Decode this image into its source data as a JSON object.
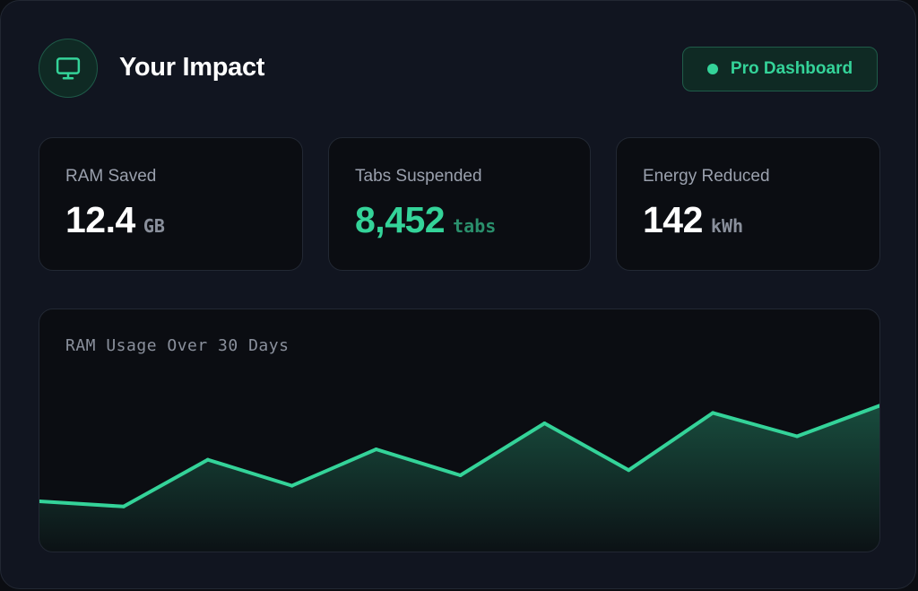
{
  "header": {
    "title": "Your Impact",
    "logo_icon": "monitor-icon",
    "badge_label": "Pro Dashboard"
  },
  "stats": [
    {
      "label": "RAM Saved",
      "value": "12.4",
      "unit": "GB"
    },
    {
      "label": "Tabs Suspended",
      "value": "8,452",
      "unit": "tabs"
    },
    {
      "label": "Energy Reduced",
      "value": "142",
      "unit": "kWh"
    }
  ],
  "colors": {
    "accent": "#34d399",
    "background": "#111520",
    "panel": "#0b0d12"
  },
  "chart_data": {
    "type": "area",
    "title": "RAM Usage Over 30 Days",
    "x": [
      1,
      2,
      3,
      4,
      5,
      6,
      7,
      8,
      9,
      10,
      11
    ],
    "values": [
      20,
      18,
      36,
      26,
      40,
      30,
      50,
      32,
      54,
      45,
      57
    ],
    "ylim": [
      0,
      80
    ],
    "grid": false,
    "legend": "none"
  }
}
